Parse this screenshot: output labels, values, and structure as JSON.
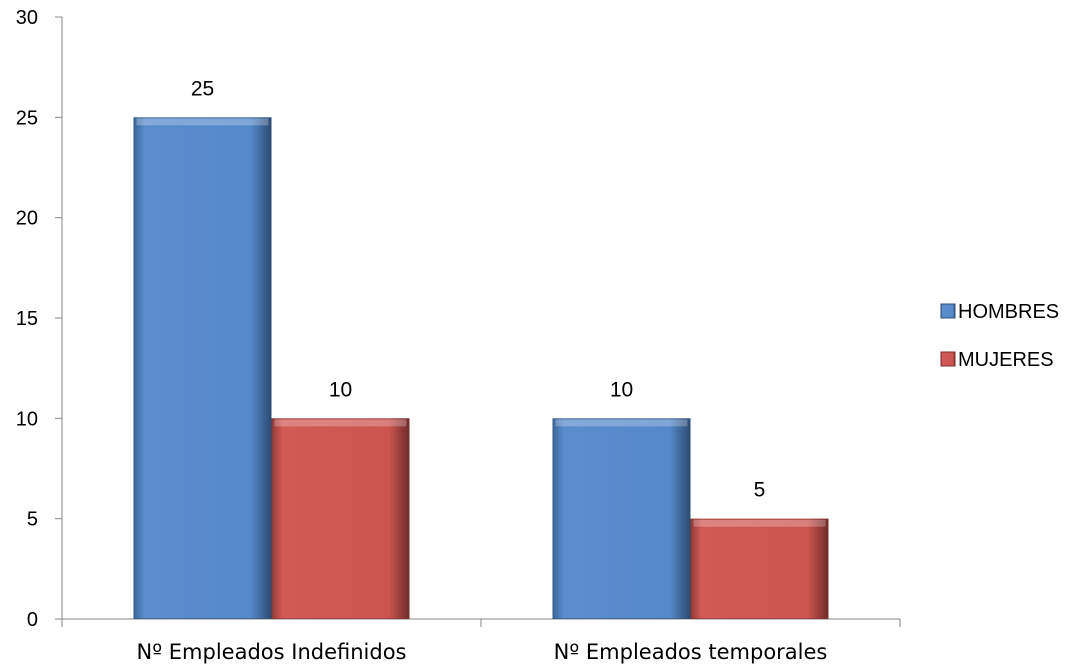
{
  "chart_data": {
    "type": "bar",
    "categories": [
      "Nº Empleados Indefinidos",
      "Nº Empleados temporales"
    ],
    "series": [
      {
        "name": "HOMBRES",
        "values": [
          25,
          10
        ],
        "color": "#4f81bd"
      },
      {
        "name": "MUJERES",
        "values": [
          10,
          5
        ],
        "color": "#c0504d"
      }
    ],
    "ylim": [
      0,
      30
    ],
    "yticks": [
      0,
      5,
      10,
      15,
      20,
      25,
      30
    ],
    "data_labels": true,
    "legend": "right",
    "grid": false
  }
}
